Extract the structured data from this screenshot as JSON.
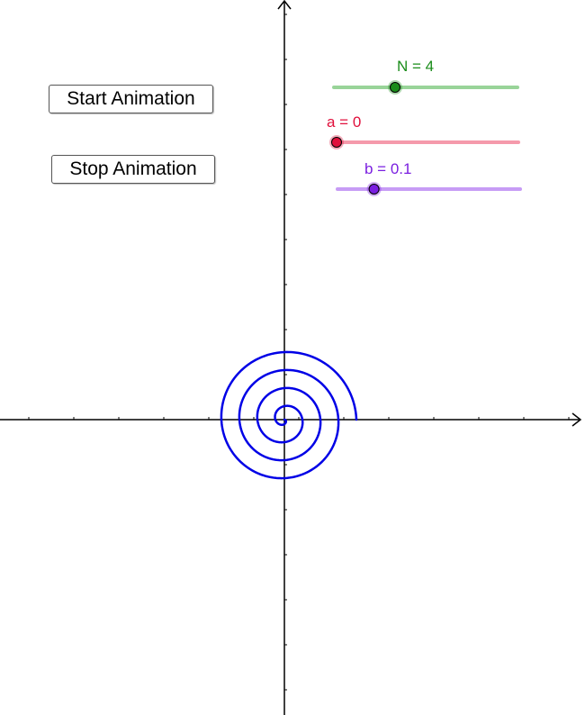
{
  "buttons": {
    "start_label": "Start Animation",
    "stop_label": "Stop Animation"
  },
  "sliders": [
    {
      "name": "N",
      "label": "N = 4",
      "value": 4,
      "min": 1,
      "max": 10,
      "color": "#1a8c1a",
      "track_color": "#99d499",
      "knob_color": "#1a8c1a"
    },
    {
      "name": "a",
      "label": "a = 0",
      "value": 0,
      "min": 0,
      "max": 10,
      "color": "#e0103c",
      "track_color": "#f59aab",
      "knob_color": "#e0103c"
    },
    {
      "name": "b",
      "label": "b = 0.1",
      "value": 0.1,
      "min": 0,
      "max": 0.5,
      "color": "#7a1ee0",
      "track_color": "#c79cf5",
      "knob_color": "#7a1ee0"
    }
  ],
  "graph": {
    "curve_color": "#0000e6",
    "axis_color": "#000000",
    "curve": "archimedean-spiral"
  }
}
